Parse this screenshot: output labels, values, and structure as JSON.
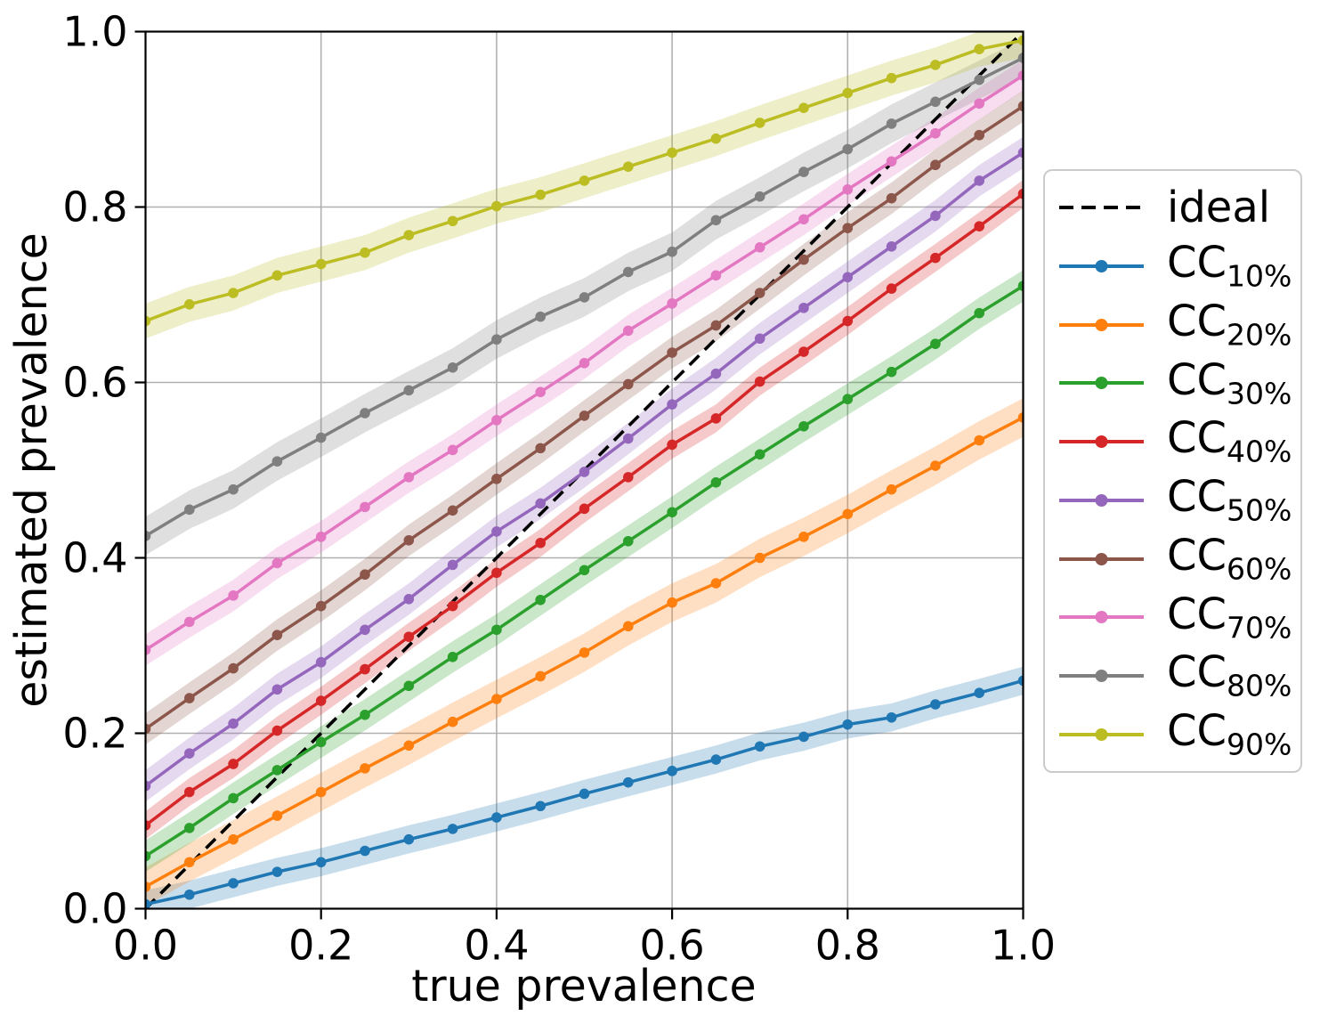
{
  "figure": {
    "background": "#ffffff",
    "grid_color": "#b0b0b0",
    "spine_color": "#000000",
    "x_tick_labels": [
      "0.0",
      "0.2",
      "0.4",
      "0.6",
      "0.8",
      "1.0"
    ],
    "y_tick_labels": [
      "0.0",
      "0.2",
      "0.4",
      "0.6",
      "0.8",
      "1.0"
    ]
  },
  "chart_data": {
    "type": "line",
    "title": "",
    "xlabel": "true prevalence",
    "ylabel": "estimated prevalence",
    "xlim": [
      0.0,
      1.0
    ],
    "ylim": [
      0.0,
      1.0
    ],
    "grid": true,
    "legend_position": "outside-right",
    "tick_values": [
      0.0,
      0.2,
      0.4,
      0.6,
      0.8,
      1.0
    ],
    "x": [
      0.0,
      0.05,
      0.1,
      0.15,
      0.2,
      0.25,
      0.3,
      0.35,
      0.4,
      0.45,
      0.5,
      0.55,
      0.6,
      0.65,
      0.7,
      0.75,
      0.8,
      0.85,
      0.9,
      0.95,
      1.0
    ],
    "ideal": {
      "label": "ideal",
      "color": "#000000",
      "style": "dashed",
      "x": [
        0.0,
        1.0
      ],
      "y": [
        0.0,
        1.0
      ]
    },
    "series": [
      {
        "name": "CC",
        "subscript": "10%",
        "color": "#1f77b4",
        "band_halfwidth": 0.016,
        "values": [
          0.005,
          0.016,
          0.029,
          0.042,
          0.053,
          0.066,
          0.079,
          0.091,
          0.104,
          0.117,
          0.131,
          0.144,
          0.157,
          0.17,
          0.185,
          0.196,
          0.21,
          0.218,
          0.233,
          0.246,
          0.26
        ]
      },
      {
        "name": "CC",
        "subscript": "20%",
        "color": "#ff7f0e",
        "band_halfwidth": 0.022,
        "values": [
          0.025,
          0.053,
          0.079,
          0.106,
          0.133,
          0.16,
          0.186,
          0.213,
          0.239,
          0.265,
          0.292,
          0.322,
          0.349,
          0.371,
          0.4,
          0.424,
          0.45,
          0.478,
          0.505,
          0.534,
          0.56
        ]
      },
      {
        "name": "CC",
        "subscript": "30%",
        "color": "#2ca02c",
        "band_halfwidth": 0.018,
        "values": [
          0.06,
          0.092,
          0.126,
          0.158,
          0.19,
          0.221,
          0.254,
          0.287,
          0.318,
          0.352,
          0.386,
          0.419,
          0.452,
          0.486,
          0.518,
          0.55,
          0.581,
          0.612,
          0.644,
          0.679,
          0.71
        ]
      },
      {
        "name": "CC",
        "subscript": "40%",
        "color": "#d62728",
        "band_halfwidth": 0.016,
        "values": [
          0.095,
          0.133,
          0.165,
          0.203,
          0.237,
          0.273,
          0.31,
          0.345,
          0.383,
          0.417,
          0.456,
          0.492,
          0.529,
          0.559,
          0.601,
          0.635,
          0.67,
          0.707,
          0.742,
          0.778,
          0.815
        ]
      },
      {
        "name": "CC",
        "subscript": "50%",
        "color": "#9467bd",
        "band_halfwidth": 0.018,
        "values": [
          0.14,
          0.177,
          0.211,
          0.25,
          0.281,
          0.318,
          0.353,
          0.392,
          0.43,
          0.462,
          0.498,
          0.536,
          0.575,
          0.61,
          0.65,
          0.685,
          0.72,
          0.755,
          0.79,
          0.83,
          0.862
        ]
      },
      {
        "name": "CC",
        "subscript": "60%",
        "color": "#8c564b",
        "band_halfwidth": 0.018,
        "values": [
          0.205,
          0.24,
          0.274,
          0.312,
          0.345,
          0.381,
          0.42,
          0.454,
          0.49,
          0.525,
          0.562,
          0.598,
          0.634,
          0.665,
          0.702,
          0.74,
          0.776,
          0.81,
          0.848,
          0.882,
          0.915
        ]
      },
      {
        "name": "CC",
        "subscript": "70%",
        "color": "#e377c2",
        "band_halfwidth": 0.018,
        "values": [
          0.295,
          0.327,
          0.357,
          0.394,
          0.424,
          0.458,
          0.492,
          0.523,
          0.557,
          0.589,
          0.622,
          0.659,
          0.69,
          0.722,
          0.754,
          0.786,
          0.82,
          0.852,
          0.884,
          0.918,
          0.95
        ]
      },
      {
        "name": "CC",
        "subscript": "80%",
        "color": "#7f7f7f",
        "band_halfwidth": 0.022,
        "values": [
          0.425,
          0.455,
          0.478,
          0.51,
          0.537,
          0.565,
          0.591,
          0.617,
          0.649,
          0.675,
          0.697,
          0.726,
          0.749,
          0.785,
          0.812,
          0.84,
          0.866,
          0.895,
          0.92,
          0.945,
          0.97
        ]
      },
      {
        "name": "CC",
        "subscript": "90%",
        "color": "#bcbd22",
        "band_halfwidth": 0.02,
        "values": [
          0.67,
          0.689,
          0.702,
          0.722,
          0.735,
          0.748,
          0.768,
          0.784,
          0.801,
          0.814,
          0.83,
          0.846,
          0.862,
          0.878,
          0.896,
          0.913,
          0.93,
          0.947,
          0.962,
          0.98,
          0.99
        ]
      }
    ]
  }
}
